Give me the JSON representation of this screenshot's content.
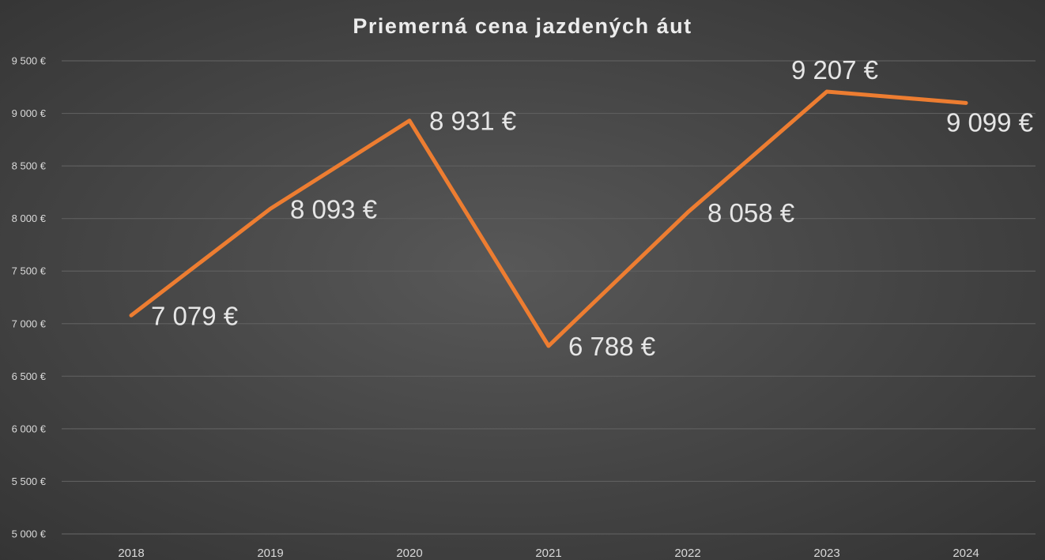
{
  "chart_data": {
    "type": "line",
    "title": "Priemerná cena jazdených áut",
    "xlabel": "",
    "ylabel": "",
    "categories": [
      "2018",
      "2019",
      "2020",
      "2021",
      "2022",
      "2023",
      "2024"
    ],
    "series": [
      {
        "values": [
          7079,
          8093,
          8931,
          6788,
          8058,
          9207,
          9099
        ],
        "data_labels": [
          "7 079 €",
          "8 093 €",
          "8 931 €",
          "6 788 €",
          "8 058 €",
          "9 207 €",
          "9 099 €"
        ],
        "color": "#ed7d31"
      }
    ],
    "ylim": [
      5000,
      9500
    ],
    "y_ticks": [
      5000,
      5500,
      6000,
      6500,
      7000,
      7500,
      8000,
      8500,
      9000,
      9500
    ],
    "y_tick_labels": [
      "5 000 €",
      "5 500 €",
      "6 000 €",
      "6 500 €",
      "7 000 €",
      "7 500 €",
      "8 000 €",
      "8 500 €",
      "9 000 €",
      "9 500 €"
    ],
    "grid": true,
    "legend": "none",
    "colors": {
      "line": "#ed7d31",
      "grid": "#5e5e5e",
      "text": "#d9d9d9",
      "title": "#ececec"
    }
  }
}
